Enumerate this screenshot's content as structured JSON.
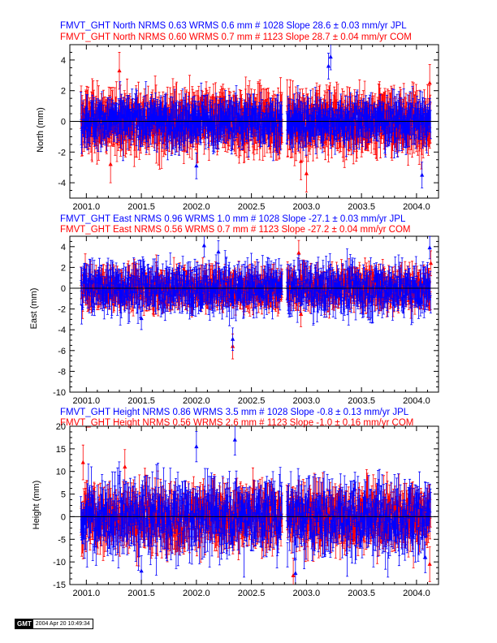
{
  "colors": {
    "jpl": "#0000ff",
    "com": "#ff0000",
    "axis": "#000000"
  },
  "x_tick_labels": [
    "2001.0",
    "2001.5",
    "2002.0",
    "2002.5",
    "2003.0",
    "2003.5",
    "2004.0"
  ],
  "stamp": {
    "logo": "GMT",
    "text": "2004 Apr 20 10:49:34"
  },
  "chart_data": [
    {
      "type": "scatter",
      "component": "north",
      "title_lines": [
        "FMVT_GHT North NRMS 0.63 WRMS  0.6 mm # 1028 Slope   28.6 ±  0.03 mm/yr JPL",
        "FMVT_GHT North NRMS 0.60 WRMS  0.7 mm # 1123 Slope   28.7 ±  0.04 mm/yr COM"
      ],
      "ylabel": "North (mm)",
      "xlim": [
        2000.85,
        2004.2
      ],
      "ylim": [
        -5,
        5
      ],
      "y_ticks": [
        -4,
        -2,
        0,
        2,
        4
      ],
      "series": [
        {
          "name": "JPL",
          "wrms": 0.6,
          "count": 1028,
          "slope": 28.6,
          "slope_sigma": 0.03,
          "err": 0.7,
          "x_ranges": [
            [
              2000.95,
              2002.78
            ],
            [
              2002.82,
              2004.13
            ]
          ],
          "outliers": [
            [
              2003.22,
              4.2
            ],
            [
              2003.2,
              3.6
            ],
            [
              2004.05,
              -3.5
            ],
            [
              2002.0,
              -2.9
            ],
            [
              2001.0,
              0.9
            ]
          ]
        },
        {
          "name": "COM",
          "wrms": 0.7,
          "count": 1123,
          "slope": 28.7,
          "slope_sigma": 0.04,
          "err": 1.0,
          "x_ranges": [
            [
              2000.95,
              2002.78
            ],
            [
              2002.82,
              2004.13
            ]
          ],
          "outliers": [
            [
              2001.22,
              -2.8
            ],
            [
              2003.0,
              -3.4
            ],
            [
              2001.3,
              3.3
            ],
            [
              2004.12,
              2.5
            ],
            [
              2002.95,
              -2.6
            ]
          ]
        }
      ]
    },
    {
      "type": "scatter",
      "component": "east",
      "title_lines": [
        "FMVT_GHT East NRMS 0.96 WRMS  1.0 mm # 1028 Slope  -27.1 ±  0.03 mm/yr JPL",
        "FMVT_GHT East NRMS 0.56 WRMS  0.7 mm # 1123 Slope  -27.2 ±  0.04 mm/yr COM"
      ],
      "ylabel": "East (mm)",
      "xlim": [
        2000.85,
        2004.2
      ],
      "ylim": [
        -10,
        5
      ],
      "y_ticks": [
        -10,
        -8,
        -6,
        -4,
        -2,
        0,
        2,
        4
      ],
      "series": [
        {
          "name": "JPL",
          "wrms": 1.0,
          "count": 1028,
          "slope": -27.1,
          "slope_sigma": 0.03,
          "err": 0.9,
          "x_ranges": [
            [
              2000.95,
              2002.78
            ],
            [
              2002.82,
              2004.13
            ]
          ],
          "outliers": [
            [
              2002.33,
              -4.9
            ],
            [
              2002.07,
              4.1
            ],
            [
              2004.12,
              3.9
            ],
            [
              2001.5,
              -2.9
            ],
            [
              2002.2,
              3.5
            ]
          ]
        },
        {
          "name": "COM",
          "wrms": 0.7,
          "count": 1123,
          "slope": -27.2,
          "slope_sigma": 0.04,
          "err": 1.0,
          "x_ranges": [
            [
              2000.95,
              2002.78
            ],
            [
              2002.82,
              2004.13
            ]
          ],
          "outliers": [
            [
              2002.33,
              -5.6
            ],
            [
              2002.93,
              3.4
            ],
            [
              2002.95,
              -2.5
            ],
            [
              2004.13,
              2.4
            ]
          ]
        }
      ]
    },
    {
      "type": "scatter",
      "component": "height",
      "title_lines": [
        "FMVT_GHT Height NRMS 0.86 WRMS  3.5 mm # 1028 Slope   -0.8 ±  0.13 mm/yr JPL",
        "FMVT_GHT Height NRMS 0.56 WRMS  2.6 mm # 1123 Slope   -1.0 ±  0.16 mm/yr COM"
      ],
      "ylabel": "Height (mm)",
      "xlim": [
        2000.85,
        2004.2
      ],
      "ylim": [
        -15,
        20
      ],
      "y_ticks": [
        -15,
        -10,
        -5,
        0,
        5,
        10,
        15,
        20
      ],
      "series": [
        {
          "name": "JPL",
          "wrms": 3.5,
          "count": 1028,
          "slope": -0.8,
          "slope_sigma": 0.13,
          "err": 2.8,
          "x_ranges": [
            [
              2000.95,
              2002.78
            ],
            [
              2002.82,
              2004.13
            ]
          ],
          "outliers": [
            [
              2002.0,
              15.5
            ],
            [
              2002.35,
              17.0
            ],
            [
              2002.9,
              -12.5
            ],
            [
              2001.5,
              -12.0
            ],
            [
              2004.08,
              -9.0
            ]
          ]
        },
        {
          "name": "COM",
          "wrms": 2.6,
          "count": 1123,
          "slope": -1.0,
          "slope_sigma": 0.16,
          "err": 3.2,
          "x_ranges": [
            [
              2000.95,
              2002.78
            ],
            [
              2002.82,
              2004.13
            ]
          ],
          "outliers": [
            [
              2000.97,
              12.0
            ],
            [
              2002.88,
              -13.0
            ],
            [
              2004.12,
              -10.5
            ],
            [
              2001.35,
              11.0
            ]
          ]
        }
      ]
    }
  ]
}
